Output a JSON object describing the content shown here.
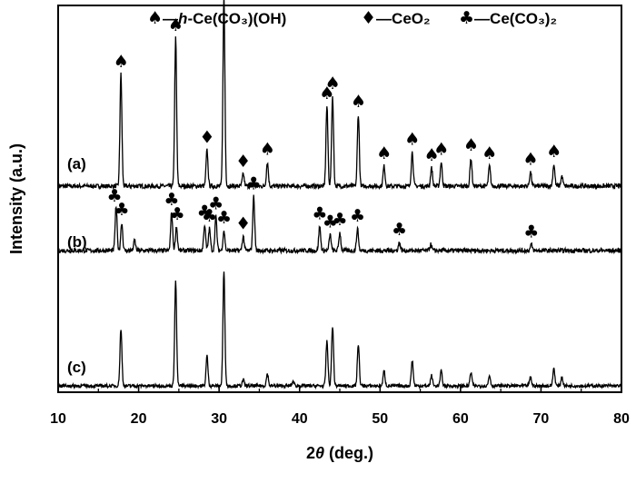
{
  "chart_data": {
    "type": "line",
    "xlabel_var": "θ",
    "xlabel_prefix": "2",
    "xlabel_suffix": " (deg.)",
    "ylabel": "Intensity (a.u.)",
    "xlim": [
      10,
      80
    ],
    "xticks": [
      10,
      20,
      30,
      40,
      50,
      60,
      70,
      80
    ],
    "grid": false,
    "legend": {
      "placement": "top-center",
      "entries": [
        {
          "symbol": "♠",
          "prefix": "—",
          "italic": "h",
          "text": "-Ce(CO₃)(OH)"
        },
        {
          "symbol": "♦",
          "prefix": "—",
          "italic": "",
          "text": "CeO₂"
        },
        {
          "symbol": "♣",
          "prefix": "—",
          "italic": "",
          "text": "Ce(CO₃)₂"
        }
      ]
    },
    "series": [
      {
        "label": "(a)",
        "peaks": [
          {
            "x": 17.8,
            "h": 0.56
          },
          {
            "x": 24.6,
            "h": 0.74
          },
          {
            "x": 28.5,
            "h": 0.18
          },
          {
            "x": 30.6,
            "h": 0.95
          },
          {
            "x": 33.0,
            "h": 0.06
          },
          {
            "x": 36.0,
            "h": 0.12
          },
          {
            "x": 43.4,
            "h": 0.4
          },
          {
            "x": 44.1,
            "h": 0.45
          },
          {
            "x": 47.3,
            "h": 0.36
          },
          {
            "x": 50.5,
            "h": 0.1
          },
          {
            "x": 54.0,
            "h": 0.17
          },
          {
            "x": 56.4,
            "h": 0.09
          },
          {
            "x": 57.6,
            "h": 0.12
          },
          {
            "x": 61.3,
            "h": 0.14
          },
          {
            "x": 63.6,
            "h": 0.1
          },
          {
            "x": 68.7,
            "h": 0.07
          },
          {
            "x": 71.6,
            "h": 0.11
          },
          {
            "x": 72.6,
            "h": 0.05
          }
        ],
        "markers": [
          {
            "x": 17.8,
            "symbol": "♠"
          },
          {
            "x": 24.6,
            "symbol": "♠"
          },
          {
            "x": 28.5,
            "symbol": "♦"
          },
          {
            "x": 30.6,
            "symbol": "♠"
          },
          {
            "x": 33.0,
            "symbol": "♦"
          },
          {
            "x": 36.0,
            "symbol": "♠"
          },
          {
            "x": 43.4,
            "symbol": "♠"
          },
          {
            "x": 44.1,
            "symbol": "♠"
          },
          {
            "x": 47.3,
            "symbol": "♠"
          },
          {
            "x": 50.5,
            "symbol": "♠"
          },
          {
            "x": 54.0,
            "symbol": "♠"
          },
          {
            "x": 56.4,
            "symbol": "♠"
          },
          {
            "x": 57.6,
            "symbol": "♠"
          },
          {
            "x": 61.3,
            "symbol": "♠"
          },
          {
            "x": 63.6,
            "symbol": "♠"
          },
          {
            "x": 68.7,
            "symbol": "♠"
          },
          {
            "x": 71.6,
            "symbol": "♠"
          }
        ]
      },
      {
        "label": "(b)",
        "peaks": [
          {
            "x": 17.2,
            "h": 0.22
          },
          {
            "x": 17.9,
            "h": 0.14
          },
          {
            "x": 19.5,
            "h": 0.05
          },
          {
            "x": 24.1,
            "h": 0.19
          },
          {
            "x": 24.7,
            "h": 0.12
          },
          {
            "x": 28.2,
            "h": 0.13
          },
          {
            "x": 28.8,
            "h": 0.11
          },
          {
            "x": 29.6,
            "h": 0.17
          },
          {
            "x": 30.6,
            "h": 0.1
          },
          {
            "x": 33.0,
            "h": 0.07
          },
          {
            "x": 34.3,
            "h": 0.27
          },
          {
            "x": 42.5,
            "h": 0.12
          },
          {
            "x": 43.8,
            "h": 0.08
          },
          {
            "x": 45.0,
            "h": 0.09
          },
          {
            "x": 47.2,
            "h": 0.11
          },
          {
            "x": 52.4,
            "h": 0.04
          },
          {
            "x": 56.3,
            "h": 0.03
          },
          {
            "x": 68.8,
            "h": 0.03
          }
        ],
        "markers": [
          {
            "x": 17.0,
            "symbol": "♣"
          },
          {
            "x": 17.9,
            "symbol": "♣"
          },
          {
            "x": 24.1,
            "symbol": "♣"
          },
          {
            "x": 24.8,
            "symbol": "♣"
          },
          {
            "x": 28.2,
            "symbol": "♣"
          },
          {
            "x": 28.8,
            "symbol": "♣"
          },
          {
            "x": 29.6,
            "symbol": "♣"
          },
          {
            "x": 30.6,
            "symbol": "♣"
          },
          {
            "x": 33.0,
            "symbol": "♦"
          },
          {
            "x": 34.3,
            "symbol": "♣"
          },
          {
            "x": 42.5,
            "symbol": "♣"
          },
          {
            "x": 43.8,
            "symbol": "♣"
          },
          {
            "x": 45.0,
            "symbol": "♣"
          },
          {
            "x": 47.2,
            "symbol": "♣"
          },
          {
            "x": 52.4,
            "symbol": "♣"
          },
          {
            "x": 68.8,
            "symbol": "♣"
          }
        ]
      },
      {
        "label": "(c)",
        "peaks": [
          {
            "x": 17.8,
            "h": 0.38
          },
          {
            "x": 24.6,
            "h": 0.7
          },
          {
            "x": 28.5,
            "h": 0.2
          },
          {
            "x": 30.6,
            "h": 0.77
          },
          {
            "x": 33.0,
            "h": 0.04
          },
          {
            "x": 36.0,
            "h": 0.08
          },
          {
            "x": 39.2,
            "h": 0.03
          },
          {
            "x": 43.4,
            "h": 0.3
          },
          {
            "x": 44.1,
            "h": 0.4
          },
          {
            "x": 47.3,
            "h": 0.28
          },
          {
            "x": 50.5,
            "h": 0.1
          },
          {
            "x": 54.0,
            "h": 0.17
          },
          {
            "x": 56.4,
            "h": 0.07
          },
          {
            "x": 57.6,
            "h": 0.1
          },
          {
            "x": 61.3,
            "h": 0.09
          },
          {
            "x": 63.6,
            "h": 0.07
          },
          {
            "x": 68.7,
            "h": 0.06
          },
          {
            "x": 71.6,
            "h": 0.12
          },
          {
            "x": 72.6,
            "h": 0.06
          }
        ],
        "markers": []
      }
    ]
  }
}
